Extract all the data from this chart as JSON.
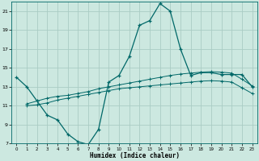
{
  "xlabel": "Humidex (Indice chaleur)",
  "background_color": "#cce8e0",
  "grid_color": "#aaccc4",
  "line_color": "#006868",
  "xlim": [
    -0.5,
    23.5
  ],
  "ylim": [
    7,
    22
  ],
  "xticks": [
    0,
    1,
    2,
    3,
    4,
    5,
    6,
    7,
    8,
    9,
    10,
    11,
    12,
    13,
    14,
    15,
    16,
    17,
    18,
    19,
    20,
    21,
    22,
    23
  ],
  "yticks": [
    7,
    9,
    11,
    13,
    15,
    17,
    19,
    21
  ],
  "series1_x": [
    0,
    1,
    2,
    3,
    4,
    5,
    6,
    7,
    8,
    9,
    10,
    11,
    12,
    13,
    14,
    15,
    16,
    17,
    18,
    19,
    20,
    21,
    22,
    23
  ],
  "series1_y": [
    14.0,
    13.0,
    11.5,
    10.0,
    9.5,
    8.0,
    7.2,
    6.9,
    8.5,
    13.5,
    14.2,
    16.2,
    19.5,
    20.0,
    21.8,
    21.0,
    17.0,
    14.2,
    14.5,
    14.5,
    14.3,
    14.3,
    14.3,
    13.0
  ],
  "series2_x": [
    1,
    2,
    3,
    4,
    5,
    6,
    7,
    8,
    9,
    10,
    11,
    12,
    13,
    14,
    15,
    16,
    17,
    18,
    19,
    20,
    21,
    22,
    23
  ],
  "series2_y": [
    11.2,
    11.5,
    11.8,
    12.0,
    12.1,
    12.3,
    12.5,
    12.8,
    13.0,
    13.2,
    13.4,
    13.6,
    13.8,
    14.0,
    14.2,
    14.35,
    14.45,
    14.55,
    14.6,
    14.55,
    14.45,
    13.8,
    13.1
  ],
  "series3_x": [
    1,
    2,
    3,
    4,
    5,
    6,
    7,
    8,
    9,
    10,
    11,
    12,
    13,
    14,
    15,
    16,
    17,
    18,
    19,
    20,
    21,
    22,
    23
  ],
  "series3_y": [
    11.0,
    11.1,
    11.3,
    11.6,
    11.8,
    12.0,
    12.2,
    12.4,
    12.6,
    12.8,
    12.9,
    13.0,
    13.1,
    13.2,
    13.3,
    13.4,
    13.5,
    13.6,
    13.65,
    13.6,
    13.5,
    12.9,
    12.3
  ]
}
